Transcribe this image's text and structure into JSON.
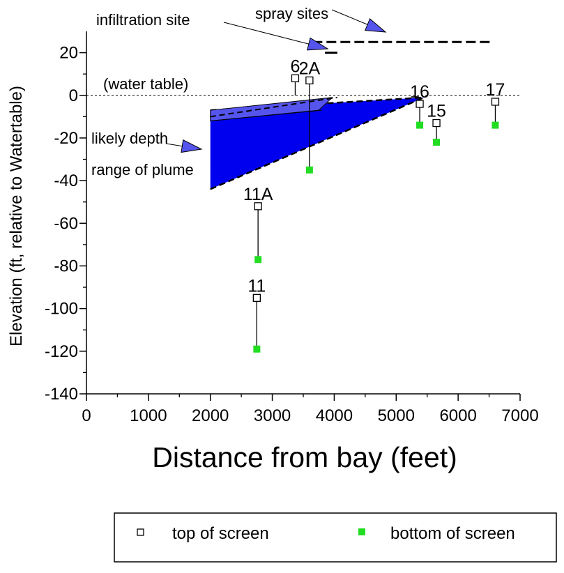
{
  "chart_data": {
    "type": "scatter",
    "title": "",
    "xlabel": "Distance from bay (feet)",
    "ylabel": "Elevation (ft, relative to Watertable)",
    "xlim": [
      0,
      7000
    ],
    "ylim": [
      -140,
      30
    ],
    "x_ticks": [
      "0",
      "1000",
      "2000",
      "3000",
      "4000",
      "5000",
      "6000",
      "7000"
    ],
    "y_ticks": [
      "20",
      "0",
      "-20",
      "-40",
      "-60",
      "-80",
      "-100",
      "-120",
      "-140"
    ],
    "grid": false,
    "legend_position": "bottom",
    "legend": {
      "top": "top of screen",
      "bottom": "bottom of screen"
    },
    "colors": {
      "top_marker": "#000000",
      "bottom_marker": "#22dd22",
      "plume": "#0000ee",
      "arrow": "#5555ee"
    },
    "wells": [
      {
        "label": "6",
        "x": 3370,
        "top": 8,
        "bottom": null
      },
      {
        "label": "2A",
        "x": 3600,
        "top": 7,
        "bottom": -35
      },
      {
        "label": "16",
        "x": 5380,
        "top": -4,
        "bottom": -14
      },
      {
        "label": "15",
        "x": 5650,
        "top": -13,
        "bottom": -22
      },
      {
        "label": "17",
        "x": 6600,
        "top": -3,
        "bottom": -14
      },
      {
        "label": "11A",
        "x": 2770,
        "top": -52,
        "bottom": -77
      },
      {
        "label": "11",
        "x": 2750,
        "top": -95,
        "bottom": -119
      }
    ],
    "annotations": {
      "water_table": "(water table)",
      "infiltration_site": "infiltration site",
      "spray_sites": "spray sites",
      "plume_line1": "likely depth",
      "plume_line2": "range of plume"
    },
    "plume": {
      "x_start": 2000,
      "x_end": 5450,
      "upper_at_start": -7,
      "lower_at_start": -44,
      "at_end": -1
    },
    "spray_site_level": 25,
    "spray_site_range": [
      3650,
      6550
    ],
    "infiltration_site_level": 20,
    "infiltration_site_range": [
      3850,
      4050
    ]
  }
}
